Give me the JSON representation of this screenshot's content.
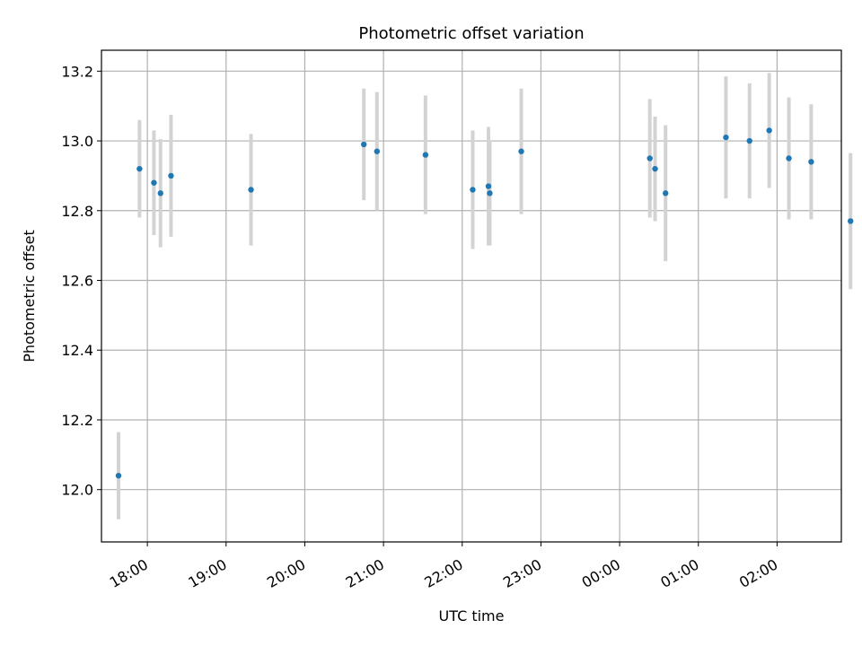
{
  "chart_data": {
    "type": "scatter",
    "title": "Photometric offset variation",
    "xlabel": "UTC time",
    "ylabel": "Photometric offset",
    "x_axis_kind": "time",
    "xlim": [
      "17:25",
      "02:49"
    ],
    "ylim": [
      11.85,
      13.26
    ],
    "x_ticks": [
      "18:00",
      "19:00",
      "20:00",
      "21:00",
      "22:00",
      "23:00",
      "00:00",
      "01:00",
      "02:00"
    ],
    "y_ticks": [
      "12.0",
      "12.2",
      "12.4",
      "12.6",
      "12.8",
      "13.0",
      "13.2"
    ],
    "grid": true,
    "legend": "none",
    "colors": {
      "point": "#1f77b4",
      "errorbar": "#d3d3d3",
      "grid": "#b0b0b0"
    },
    "points": [
      {
        "x": "17:38",
        "y": 12.04,
        "err": 0.125
      },
      {
        "x": "17:54",
        "y": 12.92,
        "err": 0.14
      },
      {
        "x": "18:05",
        "y": 12.88,
        "err": 0.15
      },
      {
        "x": "18:10",
        "y": 12.85,
        "err": 0.155
      },
      {
        "x": "18:18",
        "y": 12.9,
        "err": 0.175
      },
      {
        "x": "19:19",
        "y": 12.86,
        "err": 0.16
      },
      {
        "x": "20:45",
        "y": 12.99,
        "err": 0.16
      },
      {
        "x": "20:55",
        "y": 12.97,
        "err": 0.17
      },
      {
        "x": "21:32",
        "y": 12.96,
        "err": 0.17
      },
      {
        "x": "22:08",
        "y": 12.86,
        "err": 0.17
      },
      {
        "x": "22:20",
        "y": 12.87,
        "err": 0.17
      },
      {
        "x": "22:21",
        "y": 12.85,
        "err": 0.15
      },
      {
        "x": "22:45",
        "y": 12.97,
        "err": 0.18
      },
      {
        "x": "00:23",
        "y": 12.95,
        "err": 0.17
      },
      {
        "x": "00:27",
        "y": 12.92,
        "err": 0.15
      },
      {
        "x": "00:35",
        "y": 12.85,
        "err": 0.195
      },
      {
        "x": "01:21",
        "y": 13.01,
        "err": 0.175
      },
      {
        "x": "01:39",
        "y": 13.0,
        "err": 0.165
      },
      {
        "x": "01:54",
        "y": 13.03,
        "err": 0.165
      },
      {
        "x": "02:09",
        "y": 12.95,
        "err": 0.175
      },
      {
        "x": "02:26",
        "y": 12.94,
        "err": 0.165
      },
      {
        "x": "02:56",
        "y": 12.77,
        "err": 0.195
      }
    ]
  }
}
